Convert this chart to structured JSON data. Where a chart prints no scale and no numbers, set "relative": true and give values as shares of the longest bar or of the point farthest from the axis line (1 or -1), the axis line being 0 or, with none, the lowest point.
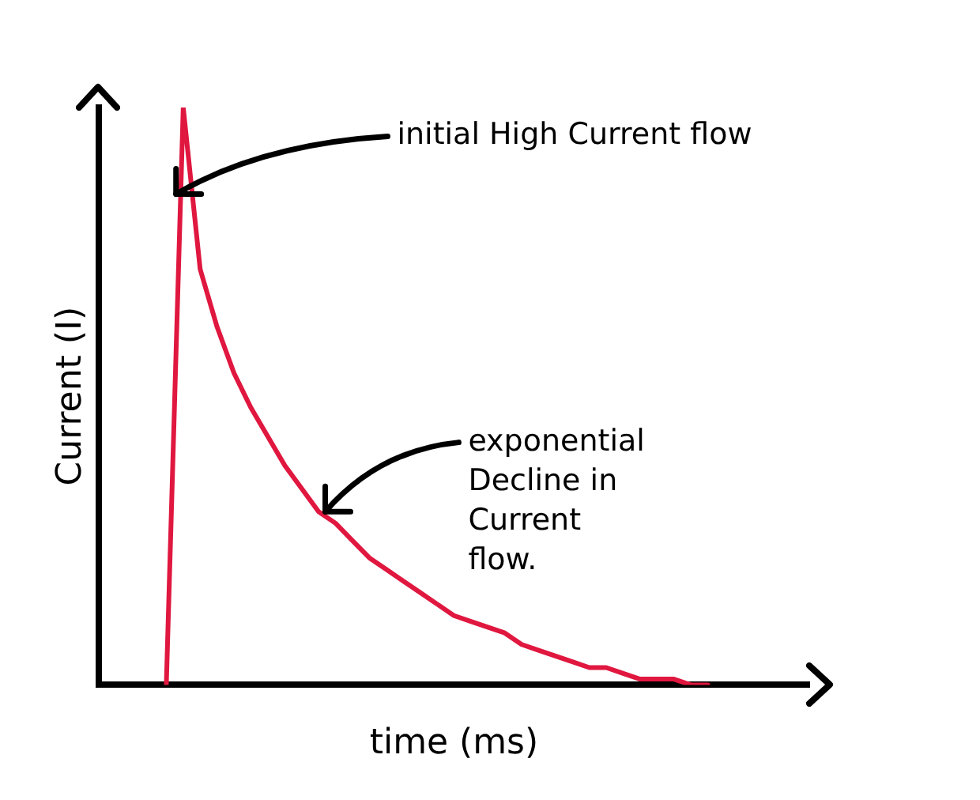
{
  "chart_data": {
    "type": "line",
    "relative": true,
    "xlabel": "time (ms)",
    "ylabel": "Current (I)",
    "grid": false,
    "legend": false,
    "marker": "none",
    "line_style": "solid",
    "categories": [
      null,
      null,
      null,
      null,
      null,
      null,
      null,
      null,
      null,
      null,
      null,
      null,
      null,
      null,
      null,
      null,
      null,
      null,
      null,
      null,
      null,
      null,
      null,
      null,
      null,
      null,
      null,
      null,
      null,
      null,
      null,
      null,
      null,
      null,
      null,
      null,
      null,
      null,
      null,
      null,
      null,
      null,
      null
    ],
    "series": [
      {
        "color": "#e0173f",
        "values": [
          null,
          null,
          null,
          null,
          0,
          1,
          0.72,
          0.62,
          0.54,
          0.48,
          0.43,
          0.38,
          0.34,
          0.3,
          0.28,
          0.25,
          0.22,
          0.2,
          0.18,
          0.16,
          0.14,
          0.12,
          0.11,
          0.1,
          0.09,
          0.07,
          0.06,
          0.05,
          0.04,
          0.03,
          0.03,
          0.02,
          0.01,
          0.01,
          0.01,
          0,
          0,
          null,
          null,
          null,
          null,
          null,
          null
        ]
      }
    ],
    "annotations": [
      "initial High Current flow",
      "exponential\nDecline in\nCurrent\nflow."
    ]
  }
}
